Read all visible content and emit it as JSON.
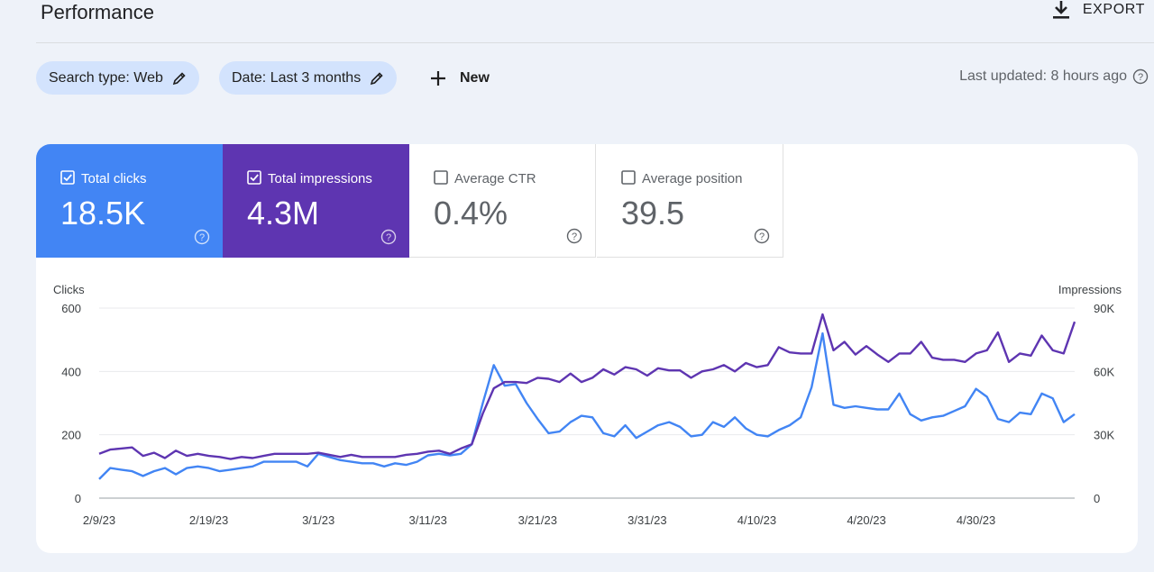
{
  "header": {
    "title": "Performance",
    "export_label": "EXPORT"
  },
  "filters": {
    "search_type": "Search type: Web",
    "date": "Date: Last 3 months",
    "new_label": "New"
  },
  "last_updated": "Last updated: 8 hours ago",
  "metrics": [
    {
      "label": "Total clicks",
      "value": "18.5K",
      "checked": true,
      "color": "#4285f4"
    },
    {
      "label": "Total impressions",
      "value": "4.3M",
      "checked": true,
      "color": "#5e35b1"
    },
    {
      "label": "Average CTR",
      "value": "0.4%",
      "checked": false
    },
    {
      "label": "Average position",
      "value": "39.5",
      "checked": false
    }
  ],
  "chart_data": {
    "type": "line",
    "left_axis_label": "Clicks",
    "right_axis_label": "Impressions",
    "left_ticks": [
      "0",
      "200",
      "400",
      "600"
    ],
    "right_ticks": [
      "0",
      "30K",
      "60K",
      "90K"
    ],
    "left_ylim": [
      0,
      600
    ],
    "right_ylim": [
      0,
      90000
    ],
    "x_tick_labels": [
      "2/9/23",
      "2/19/23",
      "3/1/23",
      "3/11/23",
      "3/21/23",
      "3/31/23",
      "4/10/23",
      "4/20/23",
      "4/30/23"
    ],
    "x_start_date": "2/9/23",
    "x_end_date": "5/9/23",
    "grid": true,
    "series": [
      {
        "name": "Clicks",
        "axis": "left",
        "color": "#4285f4",
        "values": [
          60,
          95,
          90,
          85,
          70,
          85,
          95,
          75,
          95,
          100,
          95,
          85,
          90,
          95,
          100,
          115,
          115,
          115,
          115,
          100,
          140,
          130,
          120,
          115,
          110,
          110,
          100,
          110,
          105,
          115,
          135,
          140,
          135,
          140,
          170,
          300,
          420,
          355,
          360,
          300,
          250,
          205,
          210,
          240,
          260,
          255,
          205,
          195,
          230,
          190,
          210,
          230,
          240,
          225,
          195,
          200,
          240,
          225,
          255,
          220,
          200,
          195,
          215,
          230,
          255,
          350,
          520,
          295,
          285,
          290,
          285,
          280,
          280,
          330,
          265,
          245,
          255,
          260,
          275,
          290,
          345,
          320,
          250,
          240,
          270,
          265,
          330,
          315,
          240,
          265
        ]
      },
      {
        "name": "Impressions",
        "axis": "right",
        "color": "#5e35b1",
        "values": [
          21000,
          23000,
          23500,
          24000,
          20000,
          21500,
          19000,
          22500,
          20000,
          21000,
          20000,
          19500,
          18500,
          19500,
          19000,
          20000,
          21000,
          21000,
          21000,
          21000,
          21500,
          20500,
          19500,
          20500,
          19500,
          19500,
          19500,
          19500,
          20500,
          21000,
          22000,
          22500,
          21000,
          23500,
          25500,
          40000,
          52000,
          55000,
          55000,
          54500,
          57000,
          56500,
          55000,
          59000,
          55000,
          57000,
          61000,
          58500,
          62000,
          61000,
          58000,
          61500,
          60500,
          60500,
          57000,
          60000,
          61000,
          63000,
          60000,
          64000,
          62000,
          63000,
          71500,
          69000,
          68500,
          68500,
          87000,
          70000,
          74000,
          68000,
          72000,
          68000,
          64500,
          68500,
          68500,
          74000,
          66500,
          65500,
          65500,
          64500,
          68500,
          70000,
          78500,
          64500,
          68500,
          67500,
          77000,
          70000,
          68500,
          83500
        ]
      }
    ]
  }
}
